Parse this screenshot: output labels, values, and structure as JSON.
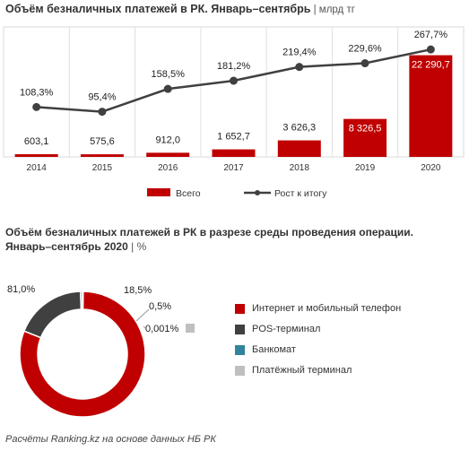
{
  "title1": "Объём безналичных платежей в РК. Январь–сентябрь",
  "title1_sep": " | ",
  "title1_unit": "млрд тг",
  "title2": "Объём безналичных платежей в РК в разрезе среды проведения операции.",
  "title2_line2": "Январь–сентябрь  2020",
  "title2_sep": " | ",
  "title2_unit": "%",
  "footer": "Расчёты Ranking.kz на основе данных НБ РК",
  "colors": {
    "red": "#c00000",
    "dark": "#404040",
    "blue": "#31849b",
    "grey": "#bfbfbf",
    "line": "#404040"
  },
  "chart_data": [
    {
      "type": "bar",
      "categories": [
        "2014",
        "2015",
        "2016",
        "2017",
        "2018",
        "2019",
        "2020"
      ],
      "series": [
        {
          "name": "Всего",
          "values": [
            603.1,
            575.6,
            912.0,
            1652.7,
            3626.3,
            8326.5,
            22290.7
          ],
          "labels": [
            "603,1",
            "575,6",
            "912,0",
            "1 652,7",
            "3 626,3",
            "8 326,5",
            "22 290,7"
          ]
        },
        {
          "name": "Рост к итогу",
          "type": "line",
          "values": [
            108.3,
            95.4,
            158.5,
            181.2,
            219.4,
            229.6,
            267.7
          ],
          "labels": [
            "108,3%",
            "95,4%",
            "158,5%",
            "181,2%",
            "219,4%",
            "229,6%",
            "267,7%"
          ]
        }
      ],
      "legend": [
        "Всего",
        "Рост к итогу"
      ],
      "legend_position": "bottom",
      "grid": true
    },
    {
      "type": "pie",
      "donut": true,
      "slices": [
        {
          "name": "Интернет и мобильный телефон",
          "value": 81.0,
          "label": "81,0%"
        },
        {
          "name": "POS-терминал",
          "value": 18.5,
          "label": "18,5%"
        },
        {
          "name": "Банкомат",
          "value": 0.5,
          "label": "0,5%"
        },
        {
          "name": "Платёжный терминал",
          "value": 0.001,
          "label": "0,001%"
        }
      ],
      "legend_position": "right"
    }
  ]
}
